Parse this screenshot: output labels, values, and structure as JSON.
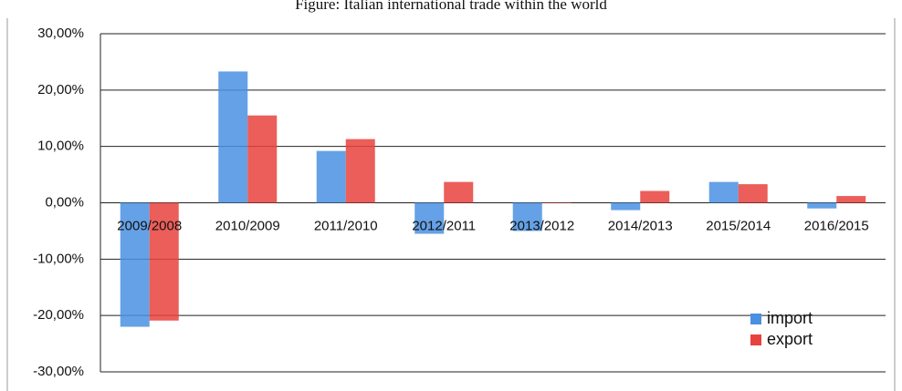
{
  "chart_data": {
    "type": "bar",
    "title": "Figure: Italian international trade within the world",
    "categories": [
      "2009/2008",
      "2010/2009",
      "2011/2010",
      "2012/2011",
      "2013/2012",
      "2014/2013",
      "2015/2014",
      "2016/2015"
    ],
    "series": [
      {
        "name": "import",
        "color": "#4a90e2",
        "values": [
          -22.0,
          23.3,
          9.2,
          -5.5,
          -5.0,
          -1.3,
          3.7,
          -1.0
        ]
      },
      {
        "name": "export",
        "color": "#e8423c",
        "values": [
          -20.9,
          15.5,
          11.3,
          3.7,
          0.1,
          2.1,
          3.3,
          1.2
        ]
      }
    ],
    "ylim": [
      -30,
      30
    ],
    "yticks": [
      {
        "value": -30,
        "label": "-30,00%"
      },
      {
        "value": -20,
        "label": "-20,00%"
      },
      {
        "value": -10,
        "label": "-10,00%"
      },
      {
        "value": 0,
        "label": "0,00%"
      },
      {
        "value": 10,
        "label": "10,00%"
      },
      {
        "value": 20,
        "label": "20,00%"
      },
      {
        "value": 30,
        "label": "30,00%"
      }
    ],
    "grid": true,
    "legend": "lower right"
  }
}
